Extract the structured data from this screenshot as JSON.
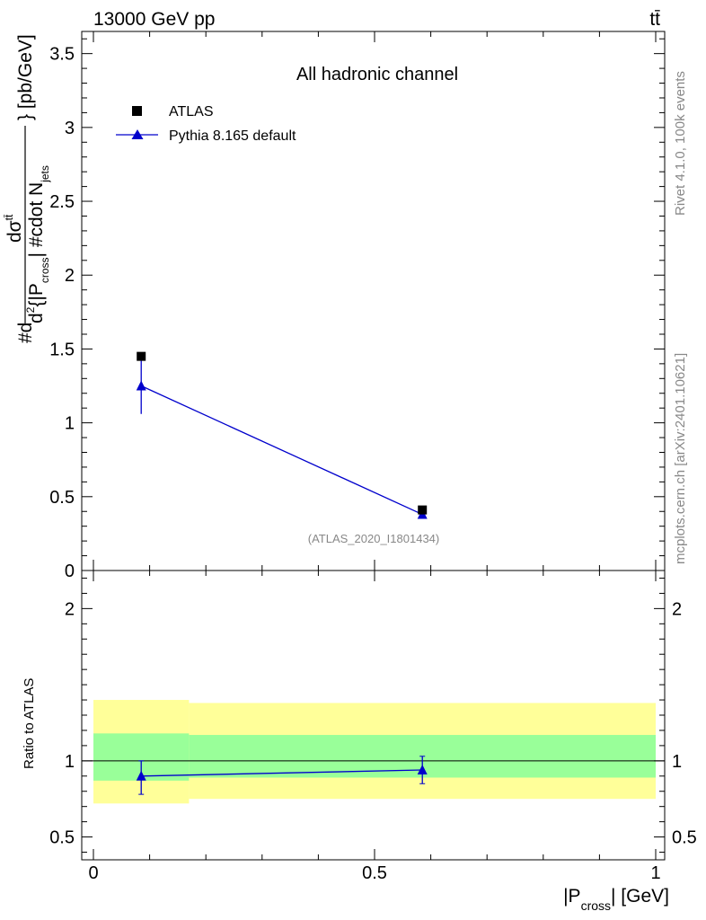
{
  "header": {
    "energy_label": "13000 GeV pp",
    "process_label": "tt̄",
    "channel_label": "All hadronic channel",
    "analysis_id": "(ATLAS_2020_I1801434)"
  },
  "side_text": {
    "rivet": "Rivet 4.1.0,  100k events",
    "mcplots": "mcplots.cern.ch [arXiv:2401.10621]"
  },
  "axes": {
    "main_ylabel": "#d d²σ^{tt̄} / d² {|P_cross| #cdot N_jets} [pb/GeV]",
    "main_ylabel_parts": {
      "hash_d": "#d",
      "num_d": "d",
      "sigma": "σ",
      "sigma_sup": "tt̄",
      "den_d": "d",
      "den_sup": "2",
      "den_rest": "{|P",
      "den_sub": "cross",
      "den_tail": "| #cdot N",
      "den_sub2": "jets",
      "units": "} [pb/GeV]"
    },
    "ratio_ylabel": "Ratio to ATLAS",
    "xlabel_parts": {
      "pre": "|P",
      "sub": "cross",
      "post": "| [GeV]"
    }
  },
  "legend": {
    "entries": [
      {
        "label": "ATLAS",
        "marker": "square",
        "color": "#000000"
      },
      {
        "label": "Pythia 8.165 default",
        "marker": "triangle",
        "color": "#0000cc"
      }
    ]
  },
  "chart_data": {
    "type": "scatter",
    "title": "All hadronic channel",
    "xlabel": "|P_cross| [GeV]",
    "ylabel": "d²σ / d²{|P_cross| · N_jets} [pb/GeV]",
    "xlim": [
      0,
      1
    ],
    "main_ylim": [
      0,
      3.65
    ],
    "ratio_ylim": [
      0.35,
      2.25
    ],
    "x_ticks": [
      0,
      0.5,
      1
    ],
    "x_tick_labels": [
      "0",
      "0.5",
      "1"
    ],
    "main_y_ticks": [
      0,
      0.5,
      1,
      1.5,
      2,
      2.5,
      3,
      3.5
    ],
    "main_y_tick_labels": [
      "0",
      "0.5",
      "1",
      "1.5",
      "2",
      "2.5",
      "3",
      "3.5"
    ],
    "ratio_y_ticks": [
      0.5,
      1,
      2
    ],
    "ratio_y_tick_labels": [
      "0.5",
      "1",
      "2"
    ],
    "bins": [
      [
        0,
        0.17
      ],
      [
        0.17,
        1.0
      ]
    ],
    "series": [
      {
        "name": "ATLAS",
        "x": [
          0.085,
          0.585
        ],
        "y": [
          1.45,
          0.41
        ]
      },
      {
        "name": "Pythia 8.165 default",
        "x": [
          0.085,
          0.585
        ],
        "y": [
          1.25,
          0.38
        ],
        "yerr_lo": [
          0.19,
          0.03
        ],
        "yerr_hi": [
          0.19,
          0.03
        ]
      }
    ],
    "ratio": {
      "x": [
        0.085,
        0.585
      ],
      "values": [
        0.9,
        0.94
      ],
      "err_lo": [
        0.12,
        0.09
      ],
      "err_hi": [
        0.1,
        0.09
      ],
      "band_inner": [
        [
          0.87,
          1.18
        ],
        [
          0.89,
          1.17
        ]
      ],
      "band_outer": [
        [
          0.72,
          1.4
        ],
        [
          0.75,
          1.38
        ]
      ],
      "band_inner_color": "#99ff99",
      "band_outer_color": "#ffff99"
    }
  }
}
